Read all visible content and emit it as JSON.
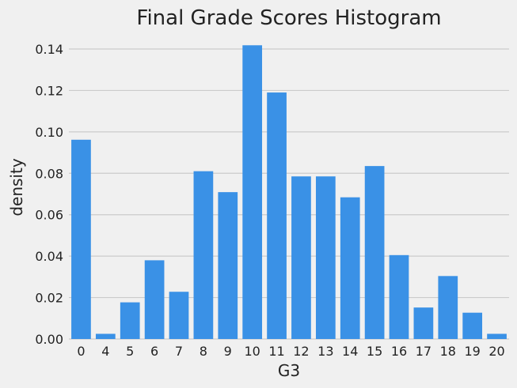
{
  "colors": {
    "background": "#f0f0f0",
    "bar": "#3a91e6",
    "grid": "#cbcbcb"
  },
  "chart_data": {
    "type": "bar",
    "title": "Final Grade Scores Histogram",
    "xlabel": "G3",
    "ylabel": "density",
    "categories": [
      "0",
      "4",
      "5",
      "6",
      "7",
      "8",
      "9",
      "10",
      "11",
      "12",
      "13",
      "14",
      "15",
      "16",
      "17",
      "18",
      "19",
      "20"
    ],
    "values": [
      0.0962,
      0.0025,
      0.0177,
      0.038,
      0.0228,
      0.081,
      0.0709,
      0.1418,
      0.119,
      0.0785,
      0.0785,
      0.0684,
      0.0835,
      0.0405,
      0.0152,
      0.0304,
      0.0127,
      0.0025
    ],
    "ylim": [
      0,
      0.14
    ],
    "yticks": [
      "0.00",
      "0.02",
      "0.04",
      "0.06",
      "0.08",
      "0.10",
      "0.12",
      "0.14"
    ],
    "grid": "horizontal",
    "legend": "none"
  }
}
